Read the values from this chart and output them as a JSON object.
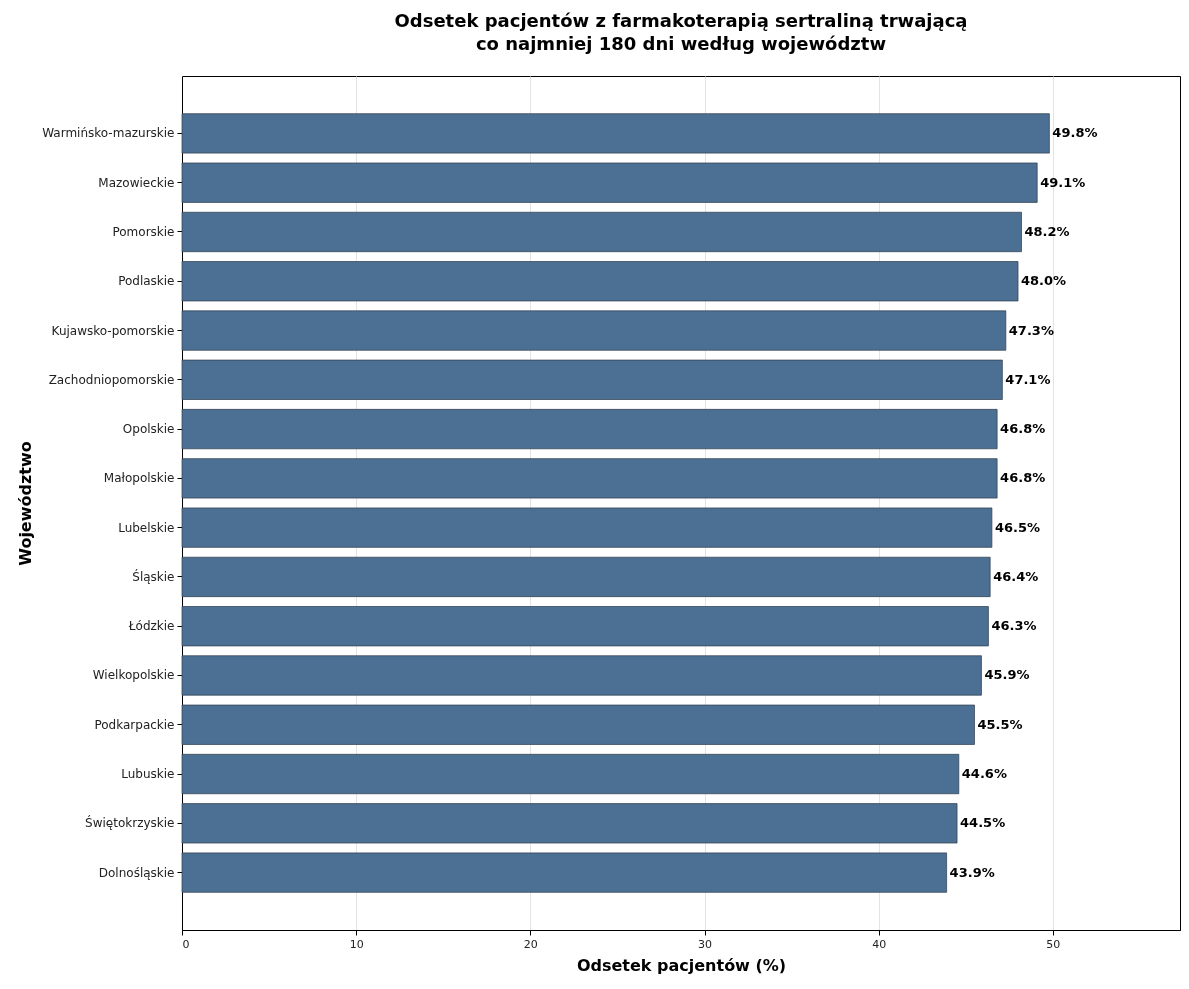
{
  "chart_data": {
    "type": "bar",
    "orientation": "horizontal",
    "title": "Odsetek pacjentów z farmakoterapią sertraliną trwającą\nco najmniej 180 dni według województw",
    "xlabel": "Odsetek pacjentów (%)",
    "ylabel": "Województwo",
    "categories": [
      "Warmińsko-mazurskie",
      "Mazowieckie",
      "Pomorskie",
      "Podlaskie",
      "Kujawsko-pomorskie",
      "Zachodniopomorskie",
      "Opolskie",
      "Małopolskie",
      "Lubelskie",
      "Śląskie",
      "Łódzkie",
      "Wielkopolskie",
      "Podkarpackie",
      "Lubuskie",
      "Świętokrzyskie",
      "Dolnośląskie"
    ],
    "values": [
      49.8,
      49.1,
      48.2,
      48.0,
      47.3,
      47.1,
      46.8,
      46.8,
      46.5,
      46.4,
      46.3,
      45.9,
      45.5,
      44.6,
      44.5,
      43.9
    ],
    "value_labels": [
      "49.8%",
      "49.1%",
      "48.2%",
      "48.0%",
      "47.3%",
      "47.1%",
      "46.8%",
      "46.8%",
      "46.5%",
      "46.4%",
      "46.3%",
      "45.9%",
      "45.5%",
      "44.6%",
      "44.5%",
      "43.9%"
    ],
    "color": "#4c7093",
    "xlim": [
      0,
      57.3
    ],
    "xticks": [
      0,
      10,
      20,
      30,
      40,
      50
    ],
    "grid": "x"
  }
}
